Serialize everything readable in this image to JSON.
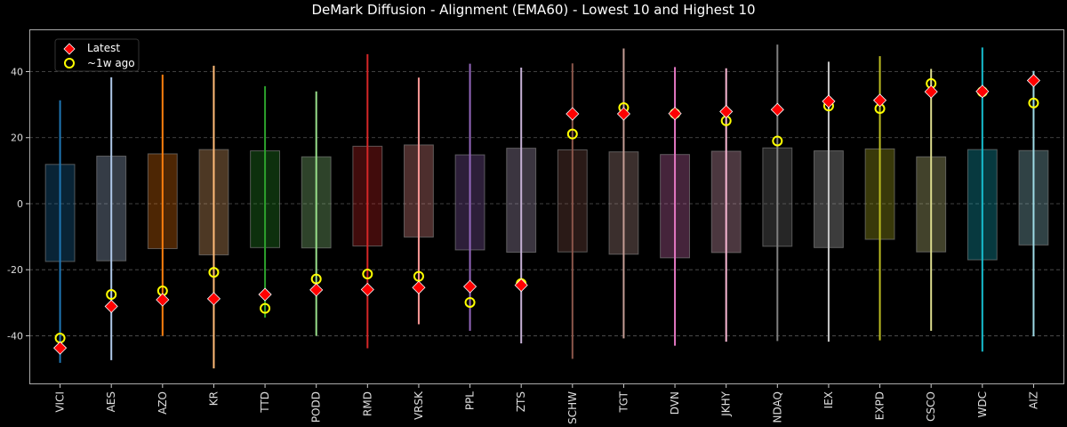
{
  "chart_data": {
    "type": "range-box-scatter",
    "title": "DeMark Diffusion - Alignment (EMA60) - Lowest 10 and Highest 10",
    "xlabel": "",
    "ylabel": "",
    "ylim": [
      -54.7,
      52.8
    ],
    "yticks": [
      -40,
      -20,
      0,
      20,
      40
    ],
    "grid": "horizontal dashed",
    "legend_position": "top-left",
    "legend": [
      {
        "label": "Latest",
        "marker": "red-diamond"
      },
      {
        "label": "~1w ago",
        "marker": "yellow-open-circle"
      }
    ],
    "categories": [
      "VICI",
      "AES",
      "AZO",
      "KR",
      "TTD",
      "PODD",
      "RMD",
      "VRSK",
      "PPL",
      "ZTS",
      "SCHW",
      "TGT",
      "DVN",
      "JKHY",
      "NDAQ",
      "IEX",
      "EXPD",
      "CSCO",
      "WDC",
      "AIZ"
    ],
    "colors": [
      "#1f77b4",
      "#aec7e8",
      "#ff7f0e",
      "#ffbb78",
      "#2ca02c",
      "#98df8a",
      "#d62728",
      "#ff9896",
      "#9467bd",
      "#c5b0d5",
      "#8c564b",
      "#c49c94",
      "#e377c2",
      "#f7b6d2",
      "#7f7f7f",
      "#c7c7c7",
      "#bcbd22",
      "#dbdb8d",
      "#17becf",
      "#9edae5"
    ],
    "whisker_min": [
      -48.2,
      -47.4,
      -40.0,
      -49.9,
      -34.5,
      -40.0,
      -43.8,
      -36.5,
      -38.5,
      -42.3,
      -47.0,
      -40.8,
      -43.0,
      -41.8,
      -41.6,
      -41.8,
      -41.4,
      -38.5,
      -44.8,
      -40.2
    ],
    "whisker_max": [
      31.3,
      38.3,
      39.1,
      41.8,
      35.6,
      34.0,
      45.3,
      38.2,
      42.4,
      41.2,
      42.5,
      47.0,
      41.4,
      41.0,
      48.2,
      43.0,
      44.7,
      40.8,
      47.3,
      40.2
    ],
    "box_low": [
      -17.5,
      -17.3,
      -13.6,
      -15.5,
      -13.3,
      -13.4,
      -12.8,
      -10.1,
      -14.0,
      -14.7,
      -14.6,
      -15.3,
      -16.4,
      -14.8,
      -12.9,
      -13.3,
      -10.8,
      -14.6,
      -17.0,
      -12.5
    ],
    "box_high": [
      11.9,
      14.4,
      15.1,
      16.4,
      16.0,
      14.2,
      17.4,
      17.8,
      14.8,
      16.8,
      16.3,
      15.7,
      14.9,
      15.9,
      16.9,
      16.0,
      16.6,
      14.2,
      16.4,
      16.1
    ],
    "latest": [
      -43.7,
      -31.1,
      -29.1,
      -28.8,
      -27.5,
      -26.1,
      -26.0,
      -25.4,
      -25.1,
      -24.7,
      27.2,
      27.2,
      27.3,
      27.9,
      28.5,
      31.0,
      31.3,
      33.9,
      34.0,
      37.3
    ],
    "week_ago": [
      -40.7,
      -27.5,
      -26.4,
      -20.8,
      -31.7,
      -22.8,
      -21.3,
      -22.0,
      -29.9,
      -24.2,
      21.1,
      29.1,
      27.3,
      25.1,
      19.0,
      29.6,
      28.8,
      36.4,
      33.9,
      30.5
    ]
  }
}
